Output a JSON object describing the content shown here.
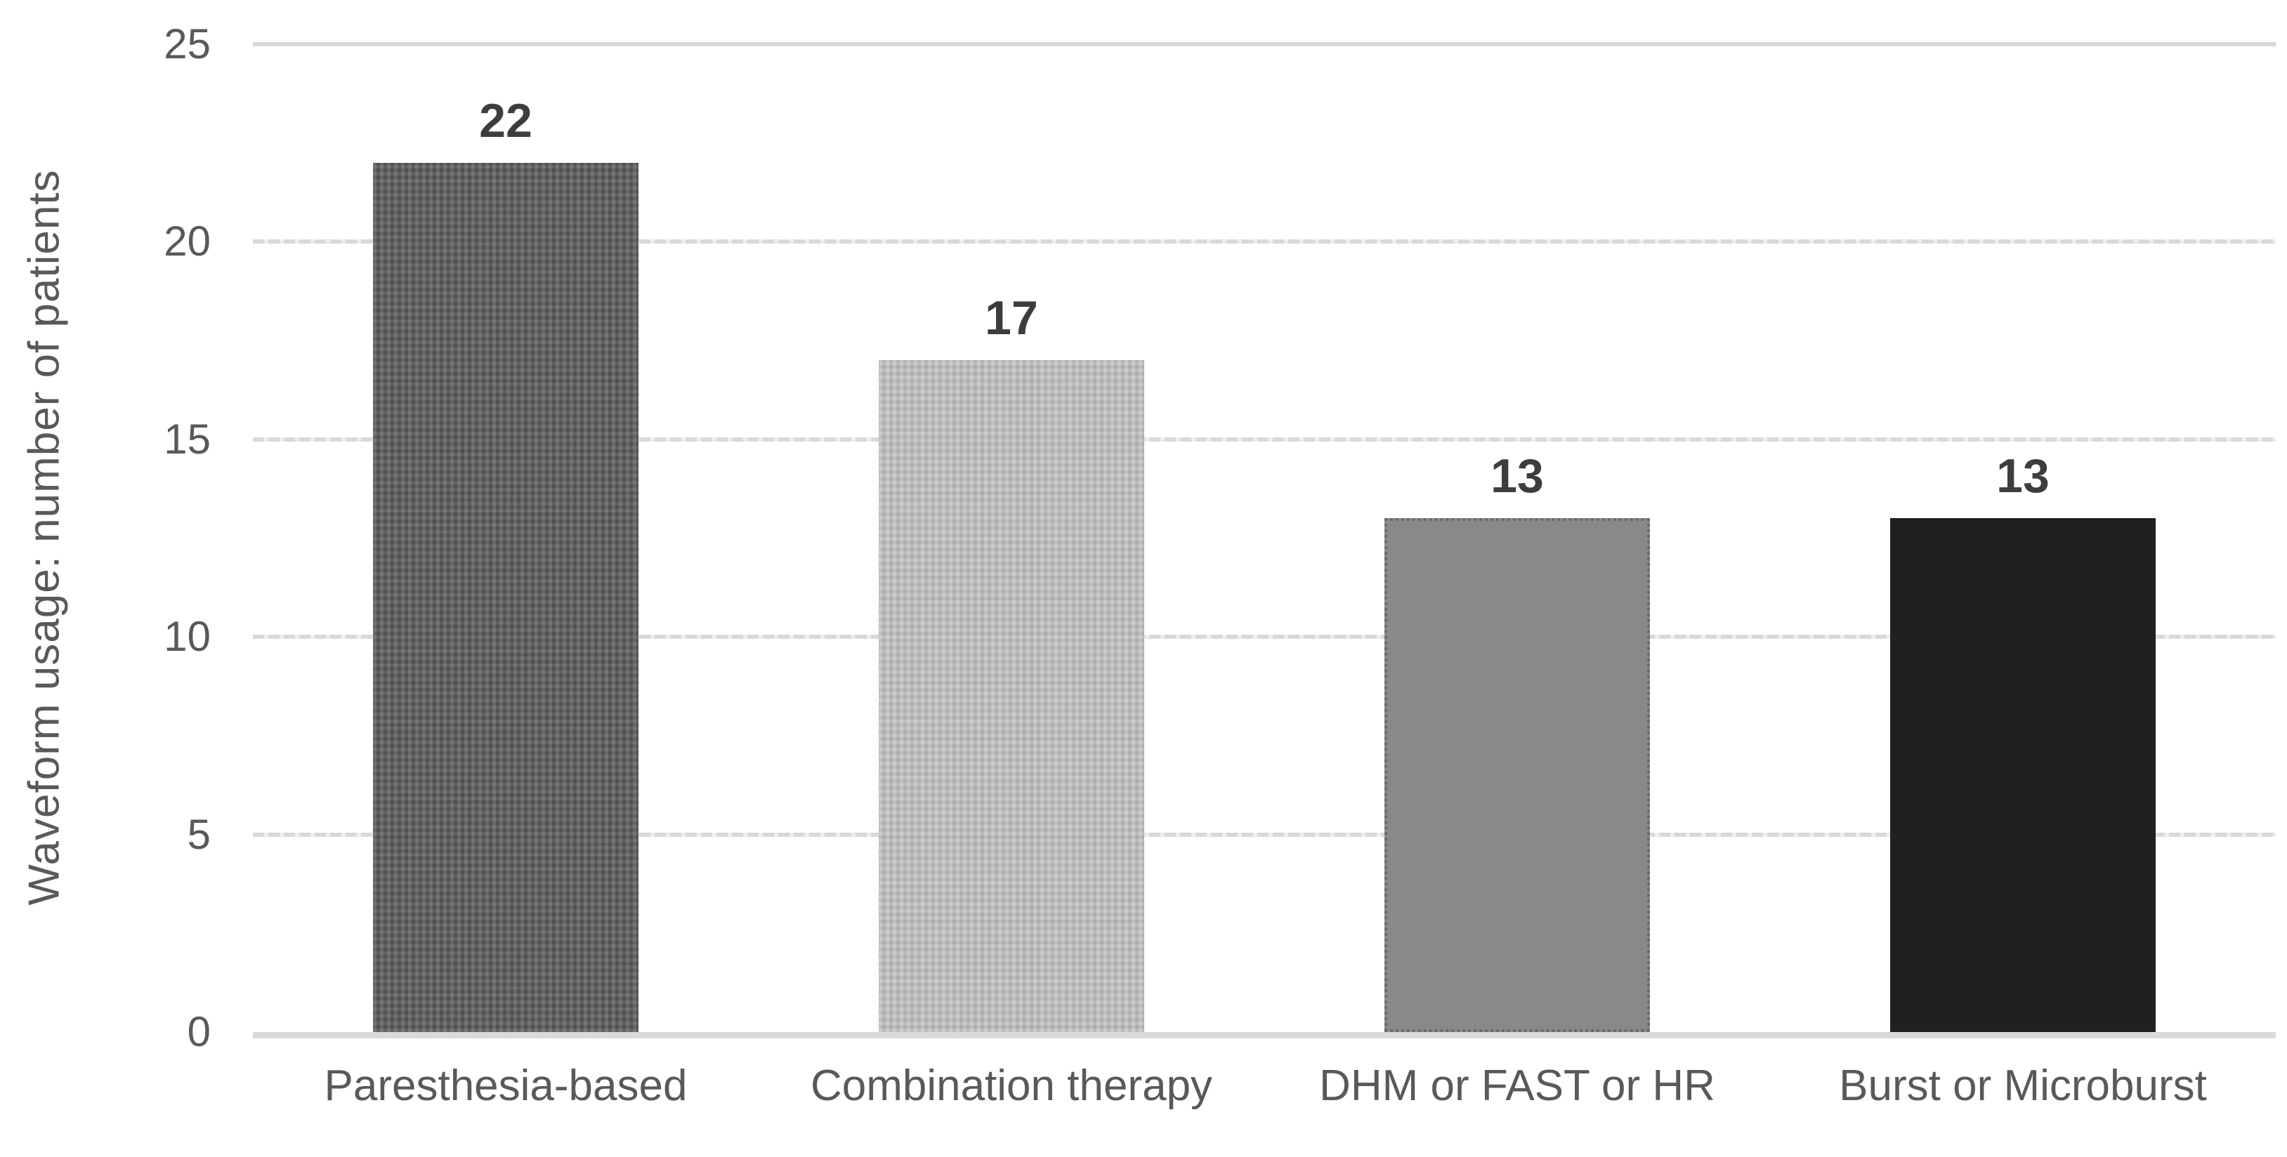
{
  "chart_data": {
    "type": "bar",
    "title": "",
    "xlabel": "",
    "ylabel": "Waveform usage: number of patients",
    "categories": [
      "Paresthesia-based",
      "Combination therapy",
      "DHM or FAST or HR",
      "Burst or Microburst"
    ],
    "values": [
      22,
      17,
      13,
      13
    ],
    "data_labels": [
      "22",
      "17",
      "13",
      "13"
    ],
    "bar_colors": [
      "#595959",
      "#c1c1c1",
      "#898989",
      "#202020"
    ],
    "bar_textures": [
      "woven",
      "woven",
      "dotted-outline",
      "solid"
    ],
    "ylim": [
      0,
      25
    ],
    "yticks": [
      0,
      5,
      10,
      15,
      20,
      25
    ],
    "grid": "horizontal",
    "legend": "none",
    "background": "#ffffff",
    "gridline_color": "#d9d9d9",
    "axis_text_color": "#595959",
    "data_label_color": "#3d3d3d"
  }
}
